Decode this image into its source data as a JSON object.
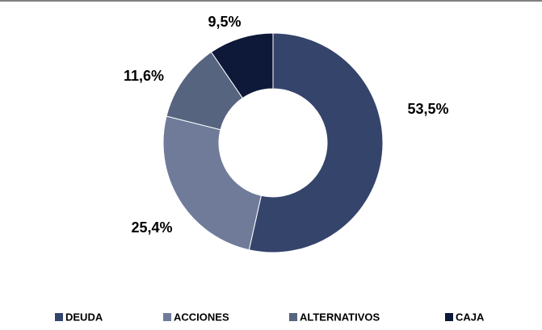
{
  "chart_data": {
    "type": "donut",
    "categories": [
      "DEUDA",
      "ACCIONES",
      "ALTERNATIVOS",
      "CAJA"
    ],
    "values": [
      53.5,
      25.4,
      11.6,
      9.5
    ],
    "value_labels": [
      "53,5%",
      "25,4%",
      "11,6%",
      "9,5%"
    ],
    "colors": [
      "#34446b",
      "#6f7b99",
      "#56647f",
      "#0e1838"
    ],
    "legend": "bottom"
  }
}
